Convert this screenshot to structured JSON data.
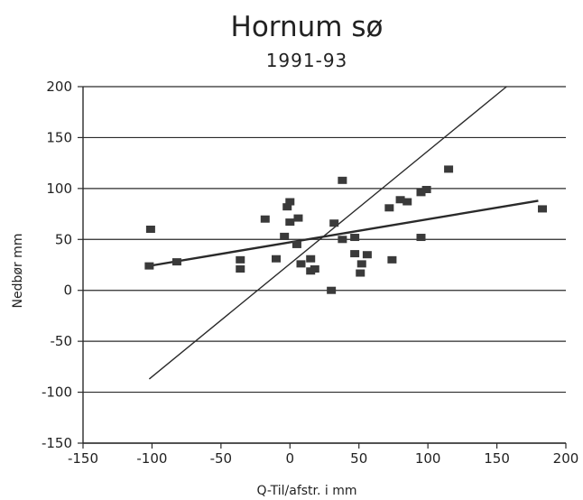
{
  "chart_data": {
    "type": "scatter",
    "title": "Hornum sø",
    "subtitle": "1991-93",
    "xlabel": "Q-Til/afstr. i mm",
    "ylabel": "Nedbør mm",
    "xlim": [
      -150,
      200
    ],
    "ylim": [
      -150,
      200
    ],
    "xticks": [
      "-150",
      "-100",
      "-50",
      "0",
      "50",
      "100",
      "150",
      "200"
    ],
    "yticks": [
      "200",
      "150",
      "100",
      "50",
      "0",
      "-50",
      "-100",
      "-150"
    ],
    "grid": "horizontal",
    "series": [
      {
        "type": "scatter",
        "marker": "square",
        "points": [
          [
            -101,
            60
          ],
          [
            -102,
            24
          ],
          [
            -82,
            28
          ],
          [
            -36,
            30
          ],
          [
            -36,
            21
          ],
          [
            -18,
            70
          ],
          [
            -10,
            31
          ],
          [
            -4,
            53
          ],
          [
            -2,
            82
          ],
          [
            0,
            87
          ],
          [
            0,
            67
          ],
          [
            5,
            45
          ],
          [
            6,
            71
          ],
          [
            8,
            26
          ],
          [
            15,
            31
          ],
          [
            15,
            19
          ],
          [
            18,
            21
          ],
          [
            30,
            0
          ],
          [
            32,
            66
          ],
          [
            38,
            108
          ],
          [
            38,
            50
          ],
          [
            47,
            52
          ],
          [
            47,
            36
          ],
          [
            51,
            17
          ],
          [
            52,
            26
          ],
          [
            56,
            35
          ],
          [
            72,
            81
          ],
          [
            74,
            30
          ],
          [
            80,
            89
          ],
          [
            85,
            87
          ],
          [
            95,
            52
          ],
          [
            95,
            96
          ],
          [
            99,
            99
          ],
          [
            115,
            119
          ],
          [
            183,
            80
          ]
        ]
      },
      {
        "type": "line",
        "points": [
          [
            -102,
            24
          ],
          [
            180,
            88
          ]
        ]
      },
      {
        "type": "line",
        "points": [
          [
            -102,
            -87
          ],
          [
            157,
            200
          ]
        ]
      }
    ],
    "colors": {
      "marker": "#3a3a3a",
      "line": "#2a2a2a",
      "grid": "#2a2a2a",
      "text": "#222222"
    }
  }
}
